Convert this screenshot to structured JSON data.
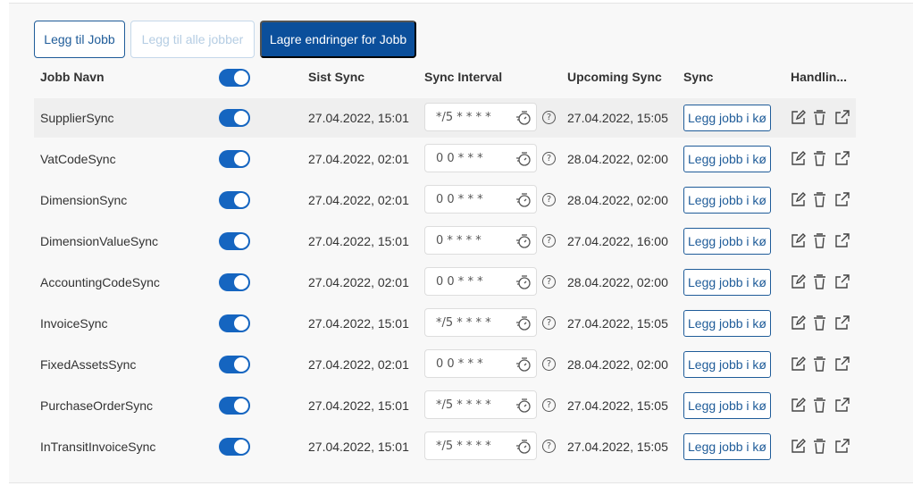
{
  "toolbar": {
    "add_job": "Legg til Jobb",
    "add_all_jobs": "Legg til alle jobber",
    "save_changes": "Lagre endringer for Jobb"
  },
  "columns": {
    "name": "Jobb Navn",
    "last_sync": "Sist Sync",
    "interval": "Sync Interval",
    "upcoming": "Upcoming Sync",
    "sync": "Sync",
    "actions": "Handlin..."
  },
  "header_toggle_on": true,
  "colors": {
    "primary": "#0b4f9b",
    "toggle": "#1565c0"
  },
  "rows": [
    {
      "name": "SupplierSync",
      "enabled": true,
      "last": "27.04.2022, 15:01",
      "interval": "*/5 * * * *",
      "upcoming": "27.04.2022, 15:05",
      "queue": "Legg jobb i kø"
    },
    {
      "name": "VatCodeSync",
      "enabled": true,
      "last": "27.04.2022, 02:01",
      "interval": "0 0 * * *",
      "upcoming": "28.04.2022, 02:00",
      "queue": "Legg jobb i kø"
    },
    {
      "name": "DimensionSync",
      "enabled": true,
      "last": "27.04.2022, 02:01",
      "interval": "0 0 * * *",
      "upcoming": "28.04.2022, 02:00",
      "queue": "Legg jobb i kø"
    },
    {
      "name": "DimensionValueSync",
      "enabled": true,
      "last": "27.04.2022, 15:01",
      "interval": "0 * * * *",
      "upcoming": "27.04.2022, 16:00",
      "queue": "Legg jobb i kø"
    },
    {
      "name": "AccountingCodeSync",
      "enabled": true,
      "last": "27.04.2022, 02:01",
      "interval": "0 0 * * *",
      "upcoming": "28.04.2022, 02:00",
      "queue": "Legg jobb i kø"
    },
    {
      "name": "InvoiceSync",
      "enabled": true,
      "last": "27.04.2022, 15:01",
      "interval": "*/5 * * * *",
      "upcoming": "27.04.2022, 15:05",
      "queue": "Legg jobb i kø"
    },
    {
      "name": "FixedAssetsSync",
      "enabled": true,
      "last": "27.04.2022, 02:01",
      "interval": "0 0 * * *",
      "upcoming": "28.04.2022, 02:00",
      "queue": "Legg jobb i kø"
    },
    {
      "name": "PurchaseOrderSync",
      "enabled": true,
      "last": "27.04.2022, 15:01",
      "interval": "*/5 * * * *",
      "upcoming": "27.04.2022, 15:05",
      "queue": "Legg jobb i kø"
    },
    {
      "name": "InTransitInvoiceSync",
      "enabled": true,
      "last": "27.04.2022, 15:01",
      "interval": "*/5 * * * *",
      "upcoming": "27.04.2022, 15:05",
      "queue": "Legg jobb i kø"
    }
  ],
  "help_glyph": "?"
}
